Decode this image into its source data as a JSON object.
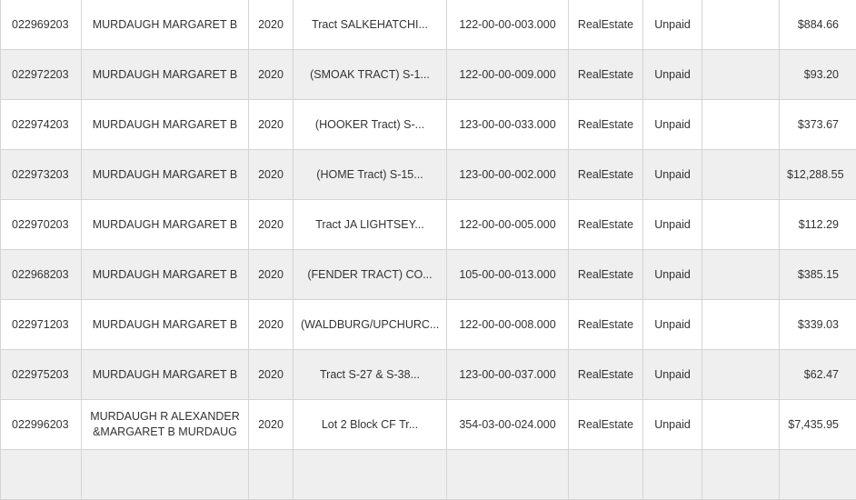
{
  "rows": [
    {
      "id": "022969203",
      "owner": "MURDAUGH MARGARET B",
      "year": "2020",
      "description": "Tract SALKEHATCHI...",
      "map": "122-00-00-003.000",
      "type": "RealEstate",
      "status": "Unpaid",
      "extra": "",
      "amount": "$884.66"
    },
    {
      "id": "022972203",
      "owner": "MURDAUGH MARGARET B",
      "year": "2020",
      "description": "(SMOAK TRACT) S-1...",
      "map": "122-00-00-009.000",
      "type": "RealEstate",
      "status": "Unpaid",
      "extra": "",
      "amount": "$93.20"
    },
    {
      "id": "022974203",
      "owner": "MURDAUGH MARGARET B",
      "year": "2020",
      "description": "(HOOKER Tract) S-...",
      "map": "123-00-00-033.000",
      "type": "RealEstate",
      "status": "Unpaid",
      "extra": "",
      "amount": "$373.67"
    },
    {
      "id": "022973203",
      "owner": "MURDAUGH MARGARET B",
      "year": "2020",
      "description": "(HOME Tract) S-15...",
      "map": "123-00-00-002.000",
      "type": "RealEstate",
      "status": "Unpaid",
      "extra": "",
      "amount": "$12,288.55"
    },
    {
      "id": "022970203",
      "owner": "MURDAUGH MARGARET B",
      "year": "2020",
      "description": "Tract JA LIGHTSEY...",
      "map": "122-00-00-005.000",
      "type": "RealEstate",
      "status": "Unpaid",
      "extra": "",
      "amount": "$112.29"
    },
    {
      "id": "022968203",
      "owner": "MURDAUGH MARGARET B",
      "year": "2020",
      "description": "(FENDER TRACT) CO...",
      "map": "105-00-00-013.000",
      "type": "RealEstate",
      "status": "Unpaid",
      "extra": "",
      "amount": "$385.15"
    },
    {
      "id": "022971203",
      "owner": "MURDAUGH MARGARET B",
      "year": "2020",
      "description": "(WALDBURG/UPCHURC...",
      "map": "122-00-00-008.000",
      "type": "RealEstate",
      "status": "Unpaid",
      "extra": "",
      "amount": "$339.03"
    },
    {
      "id": "022975203",
      "owner": "MURDAUGH MARGARET B",
      "year": "2020",
      "description": "Tract S-27 & S-38...",
      "map": "123-00-00-037.000",
      "type": "RealEstate",
      "status": "Unpaid",
      "extra": "",
      "amount": "$62.47"
    },
    {
      "id": "022996203",
      "owner": "MURDAUGH R ALEXANDER &MARGARET B MURDAUG",
      "year": "2020",
      "description": "Lot 2 Block CF Tr...",
      "map": "354-03-00-024.000",
      "type": "RealEstate",
      "status": "Unpaid",
      "extra": "",
      "amount": "$7,435.95"
    },
    {
      "id": "",
      "owner": "",
      "year": "",
      "description": "",
      "map": "",
      "type": "",
      "status": "",
      "extra": "",
      "amount": ""
    }
  ]
}
